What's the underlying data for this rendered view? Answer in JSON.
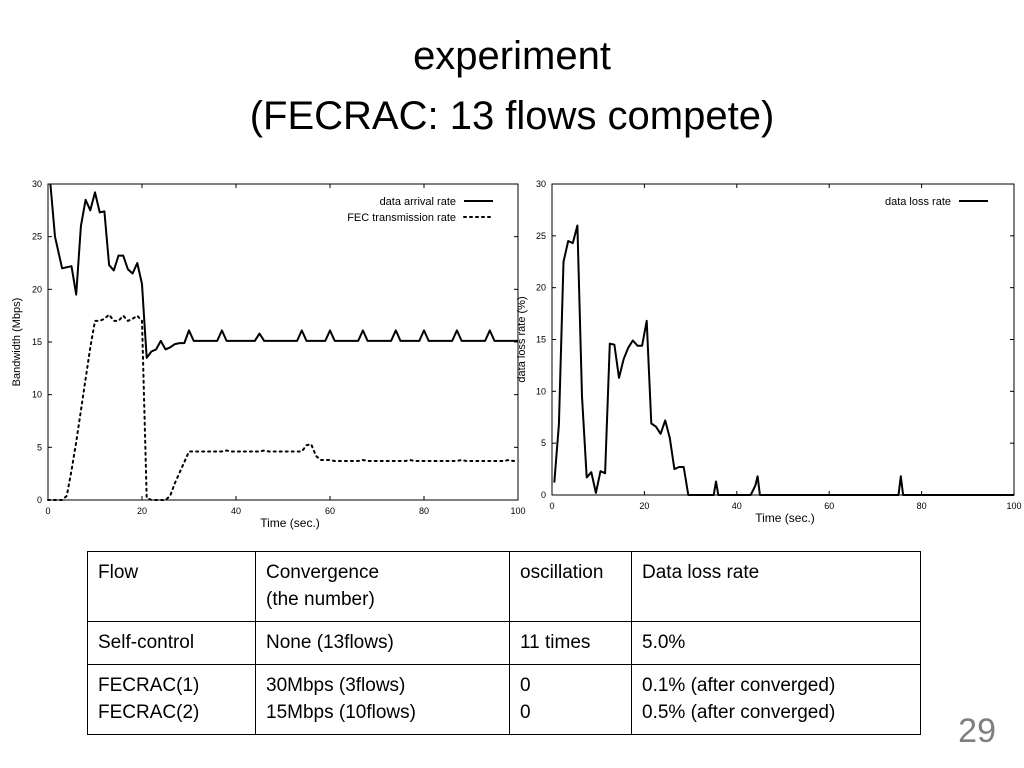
{
  "slide": {
    "title_line1": "experiment",
    "title_line2": "(FECRAC: 13 flows compete)",
    "page_number": "29"
  },
  "chart_data": [
    {
      "type": "line",
      "xlabel": "Time (sec.)",
      "ylabel": "Bandwidth (Mbps)",
      "xlim": [
        0,
        100
      ],
      "ylim": [
        0,
        30
      ],
      "xticks": [
        0,
        20,
        40,
        60,
        80,
        100
      ],
      "yticks": [
        0,
        5,
        10,
        15,
        20,
        25,
        30
      ],
      "grid": false,
      "legend": "top-right",
      "series": [
        {
          "name": "data arrival rate",
          "style": "solid",
          "x": [
            0.5,
            1.5,
            3,
            5,
            6,
            7,
            8,
            9,
            10,
            11,
            12,
            13,
            14,
            15,
            16,
            17,
            18,
            19,
            20,
            20.5,
            21,
            22,
            23,
            24,
            25,
            26,
            27,
            28,
            29,
            30,
            31,
            32,
            33,
            34,
            35,
            36,
            37,
            38,
            39,
            40,
            41,
            42,
            43,
            44,
            45,
            46,
            47,
            48,
            49,
            50,
            51,
            52,
            53,
            54,
            55,
            56,
            57,
            58,
            59,
            60,
            61,
            62,
            63,
            64,
            65,
            66,
            67,
            68,
            69,
            70,
            71,
            72,
            73,
            74,
            75,
            76,
            77,
            78,
            79,
            80,
            81,
            82,
            83,
            84,
            85,
            86,
            87,
            88,
            89,
            90,
            91,
            92,
            93,
            94,
            95,
            96,
            97,
            98,
            99,
            100
          ],
          "y": [
            30,
            25,
            22,
            22.2,
            19.5,
            26,
            28.5,
            27.5,
            29.2,
            27.3,
            27.4,
            22.3,
            21.8,
            23.2,
            23.2,
            21.9,
            21.5,
            22.5,
            20.5,
            17,
            13.5,
            14.1,
            14.3,
            15.1,
            14.3,
            14.5,
            14.8,
            14.9,
            14.9,
            16.1,
            15.1,
            15.1,
            15.1,
            15.1,
            15.1,
            15.1,
            16.1,
            15.1,
            15.1,
            15.1,
            15.1,
            15.1,
            15.1,
            15.1,
            15.8,
            15.1,
            15.1,
            15.1,
            15.1,
            15.1,
            15.1,
            15.1,
            15.1,
            16.1,
            15.1,
            15.1,
            15.1,
            15.1,
            15.1,
            16.1,
            15.1,
            15.1,
            15.1,
            15.1,
            15.1,
            15.1,
            16.1,
            15.1,
            15.1,
            15.1,
            15.1,
            15.1,
            15.1,
            16.1,
            15.1,
            15.1,
            15.1,
            15.1,
            15.1,
            16.1,
            15.1,
            15.1,
            15.1,
            15.1,
            15.1,
            15.1,
            16.1,
            15.1,
            15.1,
            15.1,
            15.1,
            15.1,
            15.1,
            16.1,
            15.1,
            15.1,
            15.1,
            15.1,
            15.1,
            15.1
          ]
        },
        {
          "name": "FEC transmission rate",
          "style": "dotted",
          "x": [
            0,
            3,
            4,
            5,
            6,
            7,
            8,
            9,
            10,
            11,
            12,
            13,
            14,
            15,
            16,
            17,
            18,
            19,
            20,
            21,
            22,
            23,
            24,
            25,
            26,
            27,
            28,
            29,
            30,
            31,
            32,
            33,
            34,
            35,
            36,
            37,
            38,
            39,
            40,
            41,
            42,
            43,
            44,
            45,
            46,
            47,
            48,
            49,
            50,
            51,
            52,
            53,
            54,
            55,
            56,
            57,
            58,
            59,
            60,
            61,
            62,
            63,
            64,
            65,
            66,
            67,
            68,
            69,
            70,
            71,
            72,
            73,
            74,
            75,
            76,
            77,
            78,
            79,
            80,
            81,
            82,
            83,
            84,
            85,
            86,
            87,
            88,
            89,
            90,
            91,
            92,
            93,
            94,
            95,
            96,
            97,
            98,
            99,
            100
          ],
          "y": [
            0,
            0,
            0.4,
            2.8,
            5.5,
            8.5,
            11.5,
            14.5,
            17,
            17,
            17.2,
            17.6,
            17,
            17,
            17.5,
            17,
            17.2,
            17.5,
            17,
            0.2,
            0,
            0,
            0,
            0,
            0.4,
            1.6,
            2.6,
            3.6,
            4.6,
            4.6,
            4.6,
            4.6,
            4.6,
            4.6,
            4.6,
            4.6,
            4.7,
            4.6,
            4.6,
            4.6,
            4.6,
            4.6,
            4.6,
            4.6,
            4.7,
            4.6,
            4.6,
            4.6,
            4.6,
            4.6,
            4.6,
            4.6,
            4.6,
            5.2,
            5.3,
            4.2,
            3.8,
            3.8,
            3.8,
            3.7,
            3.7,
            3.7,
            3.7,
            3.7,
            3.7,
            3.8,
            3.7,
            3.7,
            3.7,
            3.7,
            3.7,
            3.7,
            3.7,
            3.7,
            3.7,
            3.8,
            3.7,
            3.7,
            3.7,
            3.7,
            3.7,
            3.7,
            3.7,
            3.7,
            3.7,
            3.7,
            3.8,
            3.7,
            3.7,
            3.7,
            3.7,
            3.7,
            3.7,
            3.7,
            3.7,
            3.7,
            3.8,
            3.7,
            3.7
          ]
        }
      ]
    },
    {
      "type": "line",
      "xlabel": "Time (sec.)",
      "ylabel": "data loss rate (%)",
      "xlim": [
        0,
        100
      ],
      "ylim": [
        0,
        30
      ],
      "xticks": [
        0,
        20,
        40,
        60,
        80,
        100
      ],
      "yticks": [
        0,
        5,
        10,
        15,
        20,
        25,
        30
      ],
      "grid": false,
      "legend": "top-right",
      "series": [
        {
          "name": "data loss rate",
          "style": "solid",
          "x": [
            0.5,
            1.5,
            2.5,
            3.5,
            4.5,
            5.5,
            6.5,
            7.5,
            8.5,
            9.5,
            10.5,
            11.5,
            12.5,
            13.5,
            14.5,
            15.5,
            16.5,
            17.5,
            18.5,
            19.5,
            20.5,
            21.5,
            22.5,
            23.5,
            24.5,
            25.5,
            26.5,
            27.5,
            28.5,
            29.5,
            35,
            35.5,
            36,
            43,
            44,
            44.5,
            45,
            46,
            75,
            75.5,
            76,
            77,
            100
          ],
          "y": [
            1.2,
            6.8,
            22.5,
            24.5,
            24.3,
            26,
            9.5,
            1.7,
            2.2,
            0.2,
            2.3,
            2.1,
            14.6,
            14.5,
            11.3,
            13.1,
            14.2,
            14.9,
            14.4,
            14.4,
            16.8,
            6.9,
            6.6,
            5.9,
            7.2,
            5.5,
            2.5,
            2.7,
            2.7,
            0,
            0,
            1.3,
            0,
            0,
            0.9,
            1.8,
            0,
            0,
            0,
            1.8,
            0,
            0,
            0
          ]
        }
      ]
    }
  ],
  "table": {
    "rows": [
      {
        "flow": [
          "Flow"
        ],
        "convergence": [
          "Convergence",
          "(the number)"
        ],
        "oscillation": [
          "oscillation"
        ],
        "loss": [
          "Data loss rate"
        ]
      },
      {
        "flow": [
          "Self-control"
        ],
        "convergence": [
          "None (13flows)"
        ],
        "oscillation": [
          "11 times"
        ],
        "loss": [
          "5.0%"
        ]
      },
      {
        "flow": [
          "FECRAC(1)",
          "FECRAC(2)"
        ],
        "convergence": [
          "30Mbps (3flows)",
          "15Mbps (10flows)"
        ],
        "oscillation": [
          "0",
          "0"
        ],
        "loss": [
          "0.1% (after converged)",
          "0.5% (after converged)"
        ]
      }
    ]
  }
}
